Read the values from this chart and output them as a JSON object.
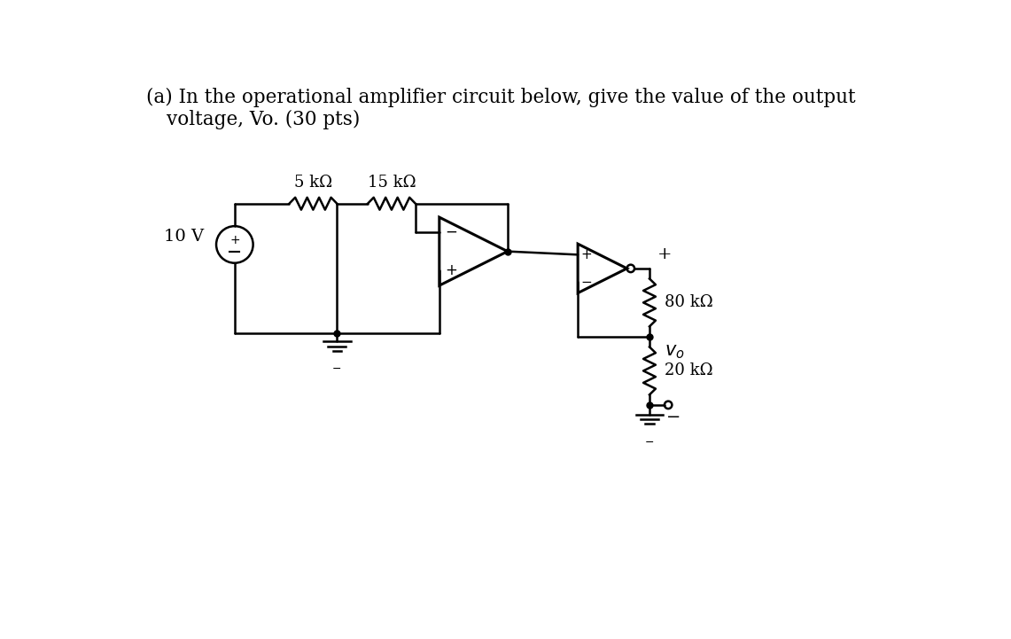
{
  "title_line1": "(a) In the operational amplifier circuit below, give the value of the output",
  "title_line2": "voltage, Vo. (30 pts)",
  "bg_color": "#ffffff",
  "line_color": "#000000",
  "resistor_5k_label": "5 kΩ",
  "resistor_15k_label": "15 kΩ",
  "resistor_80k_label": "80 kΩ",
  "resistor_20k_label": "20 kΩ",
  "voltage_label": "10 V",
  "vo_label": "v",
  "vo_sub": "o",
  "plus_label": "+",
  "minus_label": "−",
  "font_size_title": 15.5,
  "font_size_label": 14,
  "font_size_component": 13,
  "font_size_pm": 12
}
